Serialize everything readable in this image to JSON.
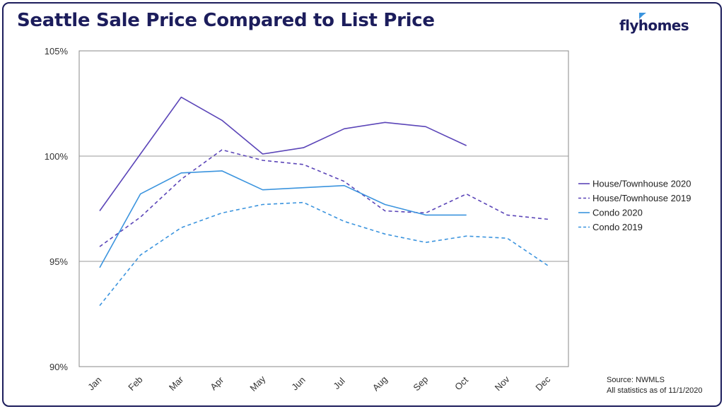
{
  "header": {
    "title": "Seattle Sale Price Compared to List Price",
    "logo_text": "flyhomes"
  },
  "source": {
    "line1": "Source: NWMLS",
    "line2": "All statistics as of 11/1/2020"
  },
  "colors": {
    "house": "#5b45b8",
    "condo": "#3b94de",
    "navy": "#1c1d5c",
    "grid": "#999999"
  },
  "chart_data": {
    "type": "line",
    "categories": [
      "Jan",
      "Feb",
      "Mar",
      "Apr",
      "May",
      "Jun",
      "Jul",
      "Aug",
      "Sep",
      "Oct",
      "Nov",
      "Dec"
    ],
    "yticks": [
      "90%",
      "95%",
      "100%",
      "105%"
    ],
    "ylim": [
      90,
      105
    ],
    "ytick_values": [
      90,
      95,
      100,
      105
    ],
    "grid": "horizontal at 95% and 100%",
    "legend_position": "right",
    "series": [
      {
        "name": "House/Townhouse 2020",
        "color": "#5b45b8",
        "dash": "solid",
        "values": [
          97.4,
          100.1,
          102.8,
          101.7,
          100.1,
          100.4,
          101.3,
          101.6,
          101.4,
          100.5,
          null,
          null
        ]
      },
      {
        "name": "House/Townhouse 2019",
        "color": "#5b45b8",
        "dash": "dashed",
        "values": [
          95.7,
          97.1,
          98.9,
          100.3,
          99.8,
          99.6,
          98.8,
          97.4,
          97.3,
          98.2,
          97.2,
          97.0
        ]
      },
      {
        "name": "Condo 2020",
        "color": "#3b94de",
        "dash": "solid",
        "values": [
          94.7,
          98.2,
          99.2,
          99.3,
          98.4,
          98.5,
          98.6,
          97.7,
          97.2,
          97.2,
          null,
          null
        ]
      },
      {
        "name": "Condo 2019",
        "color": "#3b94de",
        "dash": "dashed",
        "values": [
          92.9,
          95.3,
          96.6,
          97.3,
          97.7,
          97.8,
          96.9,
          96.3,
          95.9,
          96.2,
          96.1,
          94.8
        ]
      }
    ]
  }
}
